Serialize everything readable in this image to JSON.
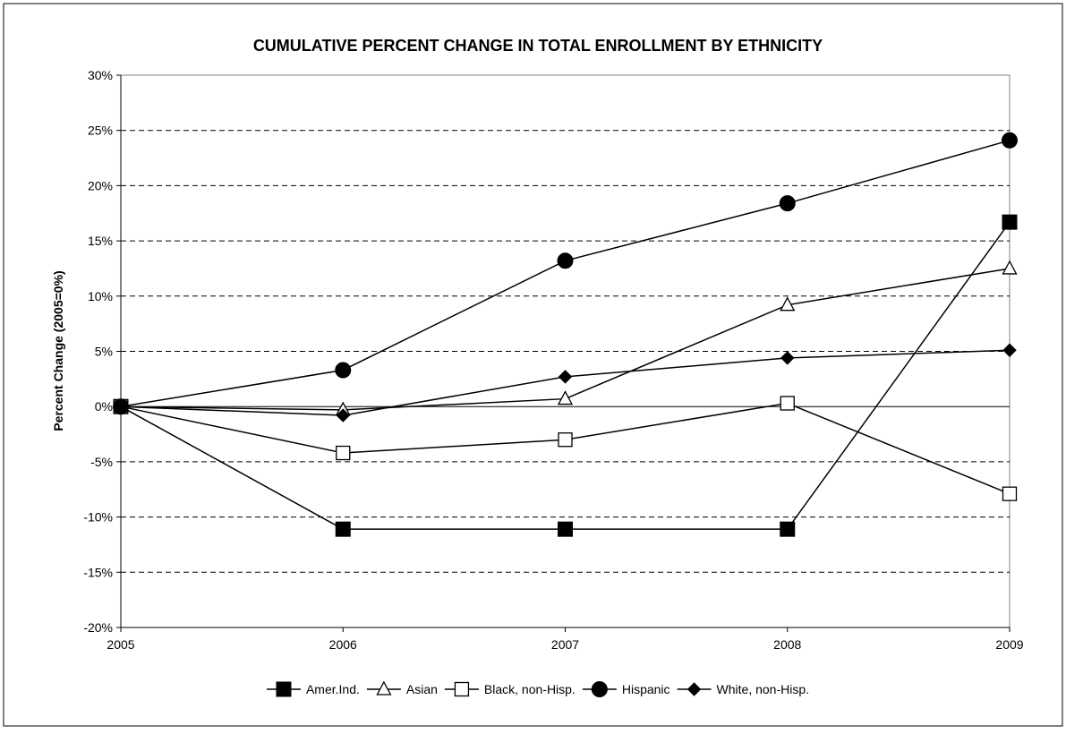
{
  "chart_data": {
    "type": "line",
    "title": "CUMULATIVE PERCENT CHANGE IN TOTAL ENROLLMENT BY ETHNICITY",
    "xlabel": "",
    "ylabel": "Percent Change (2005=0%)",
    "x": [
      "2005",
      "2006",
      "2007",
      "2008",
      "2009"
    ],
    "ylim": [
      -20,
      30
    ],
    "yticks": [
      30,
      25,
      20,
      15,
      10,
      5,
      0,
      -5,
      -10,
      -15,
      -20
    ],
    "ytick_labels": [
      "30%",
      "25%",
      "20%",
      "15%",
      "10%",
      "5%",
      "0%",
      "-5%",
      "-10%",
      "-15%",
      "-20%"
    ],
    "grid": "dashed horizontal",
    "legend_position": "bottom",
    "series": [
      {
        "name": "Amer.Ind.",
        "marker": "square-filled",
        "values": [
          0,
          -11.1,
          -11.1,
          -11.1,
          16.7
        ]
      },
      {
        "name": "Asian",
        "marker": "triangle-open",
        "values": [
          0,
          -0.3,
          0.7,
          9.2,
          12.5
        ]
      },
      {
        "name": "Black, non-Hisp.",
        "marker": "square-open",
        "values": [
          0,
          -4.2,
          -3.0,
          0.3,
          -7.9
        ]
      },
      {
        "name": "Hispanic",
        "marker": "circle-filled",
        "values": [
          0,
          3.3,
          13.2,
          18.4,
          24.1
        ]
      },
      {
        "name": "White, non-Hisp.",
        "marker": "diamond-filled",
        "values": [
          0,
          -0.8,
          2.7,
          4.4,
          5.1
        ]
      }
    ]
  }
}
